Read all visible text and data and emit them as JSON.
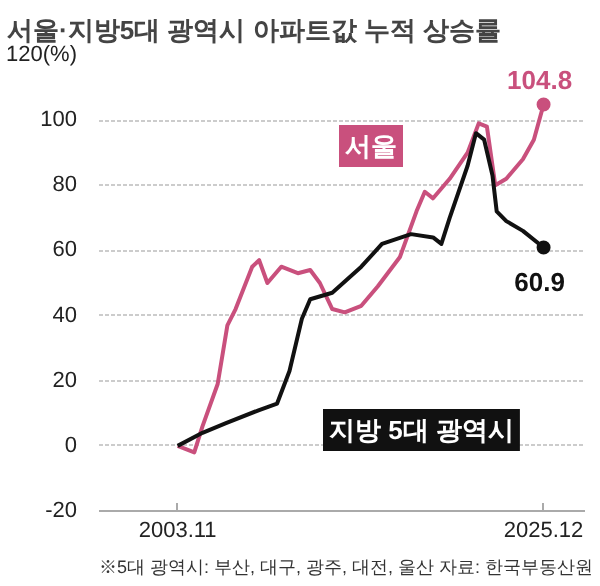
{
  "chart_data": {
    "type": "line",
    "title": "서울·지방5대 광역시 아파트값 누적 상승률",
    "xlim": [
      "1999-02",
      "2028-06"
    ],
    "xticks": [
      {
        "value": "2003-11",
        "label": "2003.11"
      },
      {
        "value": "2025-12",
        "label": "2025.12"
      }
    ],
    "ylim": [
      -20,
      120
    ],
    "yticks": [
      -20,
      0,
      20,
      40,
      60,
      80,
      100,
      {
        "value": 120,
        "label": "120(%)"
      }
    ],
    "grid": "y",
    "legend": false,
    "marker": "none",
    "line_style": "solid",
    "series": [
      {
        "name": "서울",
        "color": "#c9507d",
        "x": [
          "2003-11",
          "2004-11",
          "2005-05",
          "2006-04",
          "2006-11",
          "2007-05",
          "2008-05",
          "2008-10",
          "2009-04",
          "2010-02",
          "2011-02",
          "2011-11",
          "2012-06",
          "2013-03",
          "2013-12",
          "2014-12",
          "2015-12",
          "2017-04",
          "2018-04",
          "2018-10",
          "2019-04",
          "2020-04",
          "2021-05",
          "2022-01",
          "2022-07",
          "2023-01",
          "2023-09",
          "2024-09",
          "2025-05",
          "2025-12"
        ],
        "values": [
          0,
          -2,
          6,
          19,
          37,
          42,
          55,
          57,
          50,
          55,
          53,
          54,
          50,
          42,
          41,
          43,
          49,
          58,
          72,
          78,
          76,
          82,
          90,
          99,
          98,
          80,
          82,
          88,
          94,
          104.8
        ],
        "value_labels": [
          null,
          null,
          null,
          null,
          null,
          null,
          null,
          null,
          null,
          null,
          null,
          null,
          null,
          null,
          null,
          null,
          null,
          null,
          null,
          null,
          null,
          null,
          null,
          null,
          null,
          null,
          null,
          null,
          null,
          "104.8"
        ]
      },
      {
        "name": "지방 5대 광역시",
        "color": "#111111",
        "x": [
          "2003-11",
          "2005-05",
          "2006-10",
          "2008-10",
          "2009-11",
          "2010-08",
          "2011-05",
          "2011-11",
          "2013-03",
          "2014-12",
          "2016-03",
          "2017-12",
          "2019-04",
          "2019-10",
          "2020-04",
          "2021-05",
          "2021-11",
          "2022-05",
          "2022-11",
          "2023-02",
          "2023-09",
          "2024-09",
          "2025-12"
        ],
        "values": [
          0,
          4,
          7,
          11,
          13,
          23,
          39,
          45,
          47,
          55,
          62,
          65,
          64,
          62,
          70,
          86,
          96,
          94,
          83,
          72,
          69,
          66,
          60.9
        ],
        "value_labels": [
          null,
          null,
          null,
          null,
          null,
          null,
          null,
          null,
          null,
          null,
          null,
          null,
          null,
          null,
          null,
          null,
          null,
          null,
          null,
          null,
          null,
          null,
          "60.9"
        ]
      }
    ],
    "annotations": [
      "※5대 광역시: 부산, 대구, 광주, 대전, 울산  자료: 한국부동산원"
    ]
  }
}
